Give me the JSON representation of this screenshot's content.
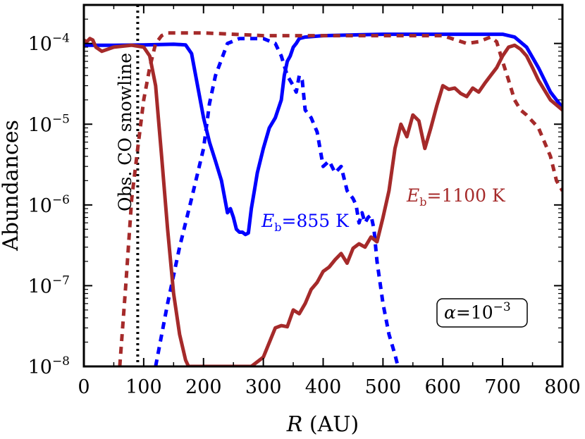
{
  "chart_data": {
    "type": "line",
    "title": "",
    "xlabel": "R",
    "xlabel_unit": "(AU)",
    "ylabel": "Abundances",
    "xlim": [
      0,
      800
    ],
    "ylim": [
      1e-08,
      0.0003
    ],
    "yscale": "log",
    "grid": false,
    "xticks": [
      "0",
      "100",
      "200",
      "300",
      "400",
      "500",
      "600",
      "700",
      "800"
    ],
    "yticks": [
      {
        "base": "10",
        "exp": "-4"
      },
      {
        "base": "10",
        "exp": "-5"
      },
      {
        "base": "10",
        "exp": "-6"
      },
      {
        "base": "10",
        "exp": "-7"
      },
      {
        "base": "10",
        "exp": "-8"
      }
    ],
    "snowline": {
      "x": 90,
      "label": "Obs. CO snowline"
    },
    "annotations": {
      "blue": {
        "symbol": "E",
        "sub": "b",
        "text": "=855 K",
        "color": "#0000ff"
      },
      "red": {
        "symbol": "E",
        "sub": "b",
        "text": "=1100 K",
        "color": "#a52a2a"
      },
      "alpha": {
        "symbol": "α",
        "text": "=10",
        "exp": "−3"
      }
    },
    "colors": {
      "blue": "#0000ff",
      "red": "#a52a2a",
      "snowline": "#000000"
    },
    "series": [
      {
        "color": "blue",
        "style": "solid",
        "x": [
          0,
          50,
          100,
          150,
          170,
          180,
          190,
          200,
          210,
          220,
          230,
          240,
          245,
          250,
          255,
          260,
          265,
          270,
          275,
          280,
          285,
          290,
          300,
          310,
          320,
          330,
          335,
          340,
          345,
          350,
          355,
          360,
          370,
          400,
          500,
          600,
          700,
          720,
          740,
          760,
          780,
          800
        ],
        "y": [
          9.5e-05,
          9.5e-05,
          9.6e-05,
          9.8e-05,
          9.6e-05,
          7.5e-05,
          3e-05,
          1.2e-05,
          6e-06,
          3.5e-06,
          2e-06,
          8e-07,
          9e-07,
          7e-07,
          5e-07,
          4.6e-07,
          4.6e-07,
          4.3e-07,
          4.5e-07,
          9e-07,
          1.5e-06,
          2.5e-06,
          5e-06,
          9e-06,
          1.2e-05,
          2e-05,
          4e-05,
          6e-05,
          7e-05,
          9e-05,
          0.0001,
          0.000115,
          0.00012,
          0.000125,
          0.00013,
          0.00013,
          0.00013,
          0.00012,
          9e-05,
          5e-05,
          2.5e-05,
          1.6e-05
        ]
      },
      {
        "color": "blue",
        "style": "dashed",
        "x": [
          120,
          140,
          160,
          180,
          200,
          210,
          220,
          240,
          260,
          300,
          320,
          330,
          340,
          350,
          355,
          360,
          365,
          370,
          380,
          390,
          400,
          410,
          420,
          430,
          440,
          450,
          455,
          460,
          465,
          470,
          475,
          480,
          485,
          490,
          500,
          510,
          520,
          525
        ],
        "y": [
          1e-08,
          6e-08,
          3e-07,
          1.2e-06,
          5e-06,
          1.8e-05,
          4e-05,
          0.0001,
          0.000115,
          0.000115,
          0.0001,
          7e-05,
          4e-05,
          3e-05,
          2.5e-05,
          4e-05,
          3.5e-05,
          1.5e-05,
          1.2e-05,
          8e-06,
          3e-06,
          3.5e-06,
          2.5e-06,
          3e-06,
          1.5e-06,
          1.2e-06,
          1e-06,
          6e-07,
          8e-07,
          6e-07,
          7e-07,
          7.5e-07,
          5e-07,
          2e-07,
          6e-08,
          2.5e-08,
          1.4e-08,
          1e-08
        ]
      },
      {
        "color": "red",
        "style": "solid",
        "x": [
          0,
          5,
          10,
          15,
          20,
          25,
          30,
          50,
          80,
          100,
          110,
          120,
          130,
          140,
          150,
          160,
          170,
          175,
          280,
          300,
          320,
          330,
          340,
          350,
          360,
          370,
          380,
          390,
          400,
          410,
          420,
          430,
          440,
          450,
          460,
          470,
          480,
          490,
          500,
          510,
          520,
          530,
          540,
          550,
          560,
          570,
          580,
          590,
          600,
          610,
          620,
          630,
          640,
          650,
          660,
          670,
          680,
          690,
          700,
          710,
          720,
          730,
          740,
          750,
          760,
          780,
          800
        ],
        "y": [
          0.00011,
          0.000105,
          0.000115,
          0.00011,
          9e-05,
          8.5e-05,
          8e-05,
          9e-05,
          9.5e-05,
          9e-05,
          7e-05,
          3e-05,
          4e-06,
          5e-07,
          8e-08,
          2.5e-08,
          1.2e-08,
          1e-08,
          1e-08,
          1.3e-08,
          3e-08,
          3.2e-08,
          3.1e-08,
          5e-08,
          4.5e-08,
          6e-08,
          9e-08,
          1.1e-07,
          1.5e-07,
          1.7e-07,
          2.1e-07,
          2.5e-07,
          1.9e-07,
          2.9e-07,
          3.3e-07,
          3e-07,
          4e-07,
          3.5e-07,
          7e-07,
          1.5e-06,
          5e-06,
          1e-05,
          7e-06,
          1.3e-05,
          1.1e-05,
          5e-06,
          9e-06,
          1.7e-05,
          3e-05,
          2.7e-05,
          2.8e-05,
          2.4e-05,
          2.2e-05,
          2.8e-05,
          2.5e-05,
          3.2e-05,
          4e-05,
          5e-05,
          7e-05,
          9e-05,
          9.5e-05,
          8.5e-05,
          7e-05,
          5e-05,
          3.5e-05,
          2e-05,
          1.5e-05
        ]
      },
      {
        "color": "red",
        "style": "dashed",
        "x": [
          60,
          70,
          80,
          90,
          100,
          110,
          120,
          130,
          140,
          150,
          200,
          250,
          300,
          400,
          500,
          600,
          640,
          660,
          680,
          690,
          700,
          710,
          720,
          730,
          740,
          760,
          780,
          790,
          800
        ],
        "y": [
          1e-08,
          1e-07,
          1.2e-06,
          5e-06,
          2e-05,
          5e-05,
          0.0001,
          0.000125,
          0.000135,
          0.000135,
          0.000135,
          0.00013,
          0.000125,
          0.000125,
          0.000125,
          0.000125,
          0.0001,
          0.000105,
          0.00012,
          0.000105,
          6e-05,
          3.5e-05,
          2e-05,
          1.5e-05,
          1.3e-05,
          9e-06,
          4e-06,
          2e-06,
          1.5e-06
        ]
      }
    ]
  }
}
